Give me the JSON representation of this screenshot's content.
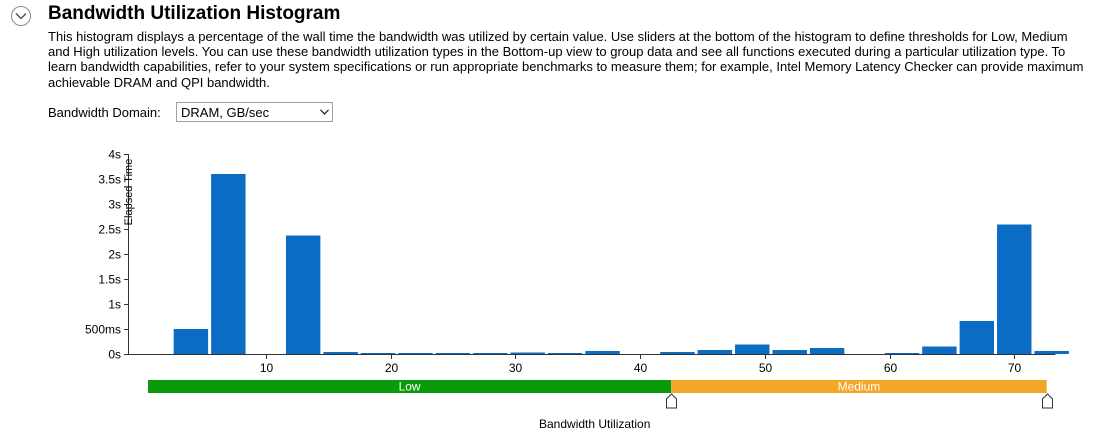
{
  "header": {
    "title": "Bandwidth Utilization Histogram",
    "collapse_icon": "chevron-down-icon"
  },
  "description": "This histogram displays a percentage of the wall time the bandwidth was utilized by certain value. Use sliders at the bottom of the histogram to define thresholds for Low, Medium and High utilization levels. You can use these bandwidth utilization types in the Bottom-up view to group data and see all functions executed during a particular utilization type. To learn bandwidth capabilities, refer to your system specifications or run appropriate benchmarks to measure them; for example, Intel Memory Latency Checker can provide maximum achievable DRAM and QPI bandwidth.",
  "domain": {
    "label": "Bandwidth Domain:",
    "selected": "DRAM, GB/sec"
  },
  "colors": {
    "bar": "#0a6cc4",
    "low": "#0b9a0b",
    "medium": "#f4a627"
  },
  "chart_data": {
    "type": "bar",
    "ylabel": "Elapsed Time",
    "xlabel": "Bandwidth Utilization",
    "ylim": [
      0,
      4
    ],
    "y_ticks": [
      {
        "v": 0,
        "label": "0s"
      },
      {
        "v": 0.5,
        "label": "500ms"
      },
      {
        "v": 1,
        "label": "1s"
      },
      {
        "v": 1.5,
        "label": "1.5s"
      },
      {
        "v": 2,
        "label": "2s"
      },
      {
        "v": 2.5,
        "label": "2.5s"
      },
      {
        "v": 3,
        "label": "3s"
      },
      {
        "v": 3.5,
        "label": "3.5s"
      },
      {
        "v": 4,
        "label": "4s"
      }
    ],
    "xlim": [
      0,
      73.3
    ],
    "x_ticks": [
      10,
      20,
      30,
      40,
      50,
      60,
      70
    ],
    "bin_width": 3,
    "bins": [
      {
        "x": 4,
        "v": 0.5
      },
      {
        "x": 7,
        "v": 3.6
      },
      {
        "x": 13,
        "v": 2.37
      },
      {
        "x": 16,
        "v": 0.04
      },
      {
        "x": 19,
        "v": 0.02
      },
      {
        "x": 22,
        "v": 0.02
      },
      {
        "x": 25,
        "v": 0.02
      },
      {
        "x": 28,
        "v": 0.02
      },
      {
        "x": 31,
        "v": 0.03
      },
      {
        "x": 34,
        "v": 0.02
      },
      {
        "x": 37,
        "v": 0.06
      },
      {
        "x": 43,
        "v": 0.04
      },
      {
        "x": 46,
        "v": 0.08
      },
      {
        "x": 49,
        "v": 0.19
      },
      {
        "x": 52,
        "v": 0.08
      },
      {
        "x": 55,
        "v": 0.12
      },
      {
        "x": 61,
        "v": 0.02
      },
      {
        "x": 64,
        "v": 0.15
      },
      {
        "x": 67,
        "v": 0.66
      },
      {
        "x": 70,
        "v": 2.59
      },
      {
        "x": 73,
        "v": 0.06
      }
    ],
    "thresholds": [
      {
        "label": "Low",
        "from": 0,
        "to": 42.5
      },
      {
        "label": "Medium",
        "from": 42.5,
        "to": 72.6
      }
    ]
  }
}
